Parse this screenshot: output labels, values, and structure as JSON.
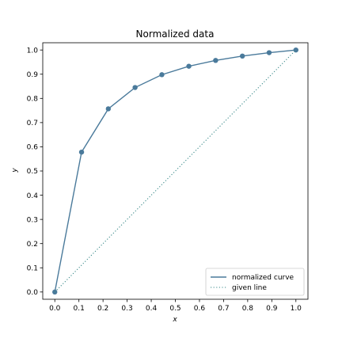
{
  "chart_data": {
    "type": "line",
    "title": "Normalized data",
    "xlabel": "x",
    "ylabel": "y",
    "xlim": [
      -0.05,
      1.05
    ],
    "ylim": [
      -0.03,
      1.03
    ],
    "xticks": [
      "0.0",
      "0.1",
      "0.2",
      "0.3",
      "0.4",
      "0.5",
      "0.6",
      "0.7",
      "0.8",
      "0.9",
      "1.0"
    ],
    "yticks": [
      "0.0",
      "0.1",
      "0.2",
      "0.3",
      "0.4",
      "0.5",
      "0.6",
      "0.7",
      "0.8",
      "0.9",
      "1.0"
    ],
    "grid": false,
    "legend_position": "lower-right",
    "series": [
      {
        "name": "normalized curve",
        "style": "solid",
        "markers": true,
        "color": "#4a7a9b",
        "x": [
          0.0,
          0.111,
          0.222,
          0.333,
          0.444,
          0.556,
          0.667,
          0.778,
          0.889,
          1.0
        ],
        "y": [
          0.0,
          0.578,
          0.757,
          0.845,
          0.898,
          0.933,
          0.957,
          0.975,
          0.989,
          1.0
        ]
      },
      {
        "name": "given line",
        "style": "dotted",
        "markers": false,
        "color": "#3b8a8a",
        "x": [
          0.0,
          1.0
        ],
        "y": [
          0.0,
          1.0
        ]
      }
    ]
  }
}
